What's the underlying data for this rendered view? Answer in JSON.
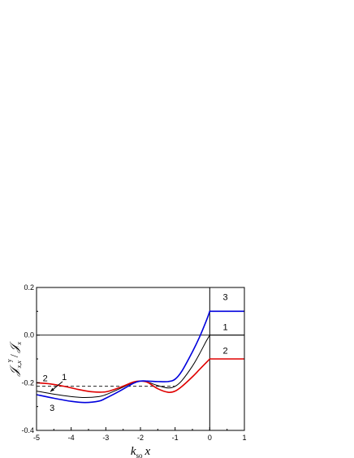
{
  "chart_data": {
    "type": "line",
    "xlim": [
      -5,
      1
    ],
    "ylim": [
      -0.4,
      0.2
    ],
    "x_ticks": [
      -5,
      -4,
      -3,
      -2,
      -1,
      0,
      1
    ],
    "y_ticks": [
      -0.4,
      -0.2,
      0.0,
      0.2
    ],
    "x_tick_labels": [
      "-5",
      "-4",
      "-3",
      "-2",
      "-1",
      "0",
      "1"
    ],
    "y_tick_labels": [
      "-0.4",
      "-0.2",
      "0.0",
      "0.2"
    ],
    "xlabel": {
      "main": "k",
      "sub": "so",
      "tail": "x"
    },
    "ylabel": {
      "numerator": "𝒥",
      "num_sub": "x,x",
      "num_sup": "y",
      "denominator": "𝒥",
      "den_sub": "x"
    },
    "grid": false,
    "legend": "none",
    "series": [
      {
        "name": "1",
        "color": "#000000",
        "x": [
          -5,
          -4.5,
          -4,
          -3.6,
          -3.2,
          -3,
          -2.6,
          -2.2,
          -2,
          -1.8,
          -1.5,
          -1.2,
          -1,
          -0.8,
          -0.5,
          -0.3,
          -0.1,
          0,
          0.001,
          1
        ],
        "y": [
          -0.235,
          -0.248,
          -0.258,
          -0.262,
          -0.258,
          -0.25,
          -0.225,
          -0.199,
          -0.193,
          -0.197,
          -0.212,
          -0.222,
          -0.215,
          -0.19,
          -0.13,
          -0.08,
          -0.025,
          0.0,
          0.0,
          0.0
        ]
      },
      {
        "name": "2",
        "color": "#e00000",
        "x": [
          -5,
          -4.6,
          -4.2,
          -3.8,
          -3.4,
          -3,
          -2.6,
          -2.2,
          -2,
          -1.8,
          -1.5,
          -1.2,
          -1,
          -0.8,
          -0.5,
          -0.3,
          -0.1,
          0,
          0.001,
          1
        ],
        "y": [
          -0.2,
          -0.205,
          -0.215,
          -0.228,
          -0.238,
          -0.238,
          -0.22,
          -0.197,
          -0.193,
          -0.198,
          -0.225,
          -0.24,
          -0.235,
          -0.215,
          -0.175,
          -0.145,
          -0.115,
          -0.1,
          -0.1,
          -0.1
        ]
      },
      {
        "name": "3",
        "color": "#0000dd",
        "x": [
          -5,
          -4.5,
          -4,
          -3.6,
          -3.2,
          -3,
          -2.6,
          -2.2,
          -2,
          -1.8,
          -1.5,
          -1.2,
          -1,
          -0.8,
          -0.5,
          -0.3,
          -0.1,
          0,
          0.001,
          1
        ],
        "y": [
          -0.25,
          -0.265,
          -0.278,
          -0.283,
          -0.277,
          -0.265,
          -0.235,
          -0.202,
          -0.193,
          -0.193,
          -0.195,
          -0.195,
          -0.185,
          -0.15,
          -0.07,
          -0.01,
          0.06,
          0.1,
          0.1,
          0.1
        ]
      }
    ],
    "reference_lines": [
      {
        "type": "dashed-horizontal",
        "y": -0.215,
        "x_range": [
          -5,
          -1
        ]
      },
      {
        "type": "horizontal",
        "y": 0.0,
        "x_range": [
          -5,
          1
        ]
      },
      {
        "type": "vertical",
        "x": 0,
        "y_range": [
          -0.4,
          0.2
        ]
      }
    ],
    "annotations": [
      {
        "text": "1",
        "x": 0.45,
        "y": 0.035
      },
      {
        "text": "2",
        "x": 0.45,
        "y": -0.065
      },
      {
        "text": "3",
        "x": 0.45,
        "y": 0.16
      },
      {
        "text": "2",
        "x": -4.75,
        "y": -0.18
      },
      {
        "text": "1",
        "x": -4.2,
        "y": -0.175
      },
      {
        "text": "3",
        "x": -4.55,
        "y": -0.305
      }
    ],
    "arrow": {
      "from": [
        -4.25,
        -0.195
      ],
      "to": [
        -4.6,
        -0.237
      ]
    }
  }
}
